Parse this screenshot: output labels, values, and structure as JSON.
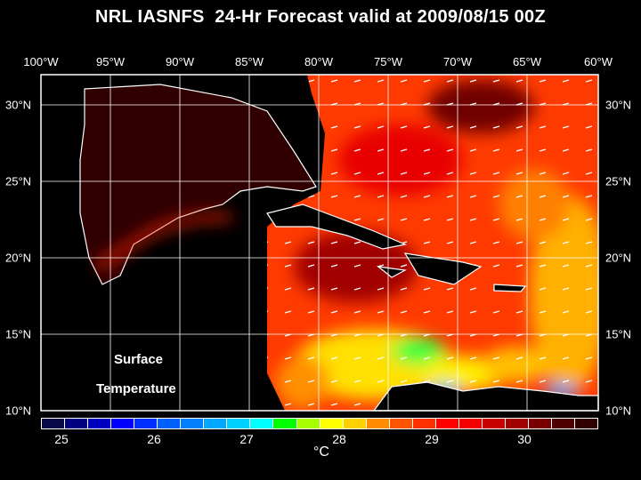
{
  "title": "NRL IASNFS  24-Hr Forecast valid at 2009/08/15 00Z",
  "field_label": [
    "Surface",
    "Temperature"
  ],
  "lon_labels": [
    "100°W",
    "95°W",
    "90°W",
    "85°W",
    "80°W",
    "75°W",
    "70°W",
    "65°W",
    "60°W"
  ],
  "lat_labels": [
    "30°N",
    "25°N",
    "20°N",
    "15°N",
    "10°N"
  ],
  "colorbar": {
    "ticks": [
      "25",
      "26",
      "27",
      "28",
      "29",
      "30"
    ],
    "unit": "°C",
    "colors": [
      "#0a0a48",
      "#000080",
      "#0000c0",
      "#0000ff",
      "#0030ff",
      "#0060ff",
      "#0080ff",
      "#00a8ff",
      "#00d0ff",
      "#00ffff",
      "#00ff00",
      "#a8ff00",
      "#ffff00",
      "#ffd000",
      "#ff8c00",
      "#ff5500",
      "#ff3000",
      "#ff0000",
      "#f40000",
      "#c80000",
      "#a00000",
      "#780000",
      "#500000",
      "#300000"
    ]
  },
  "palette": {
    "land": "#000000",
    "gulf": "#300000",
    "sea": "#f03a00",
    "grid": "#ffffff"
  }
}
